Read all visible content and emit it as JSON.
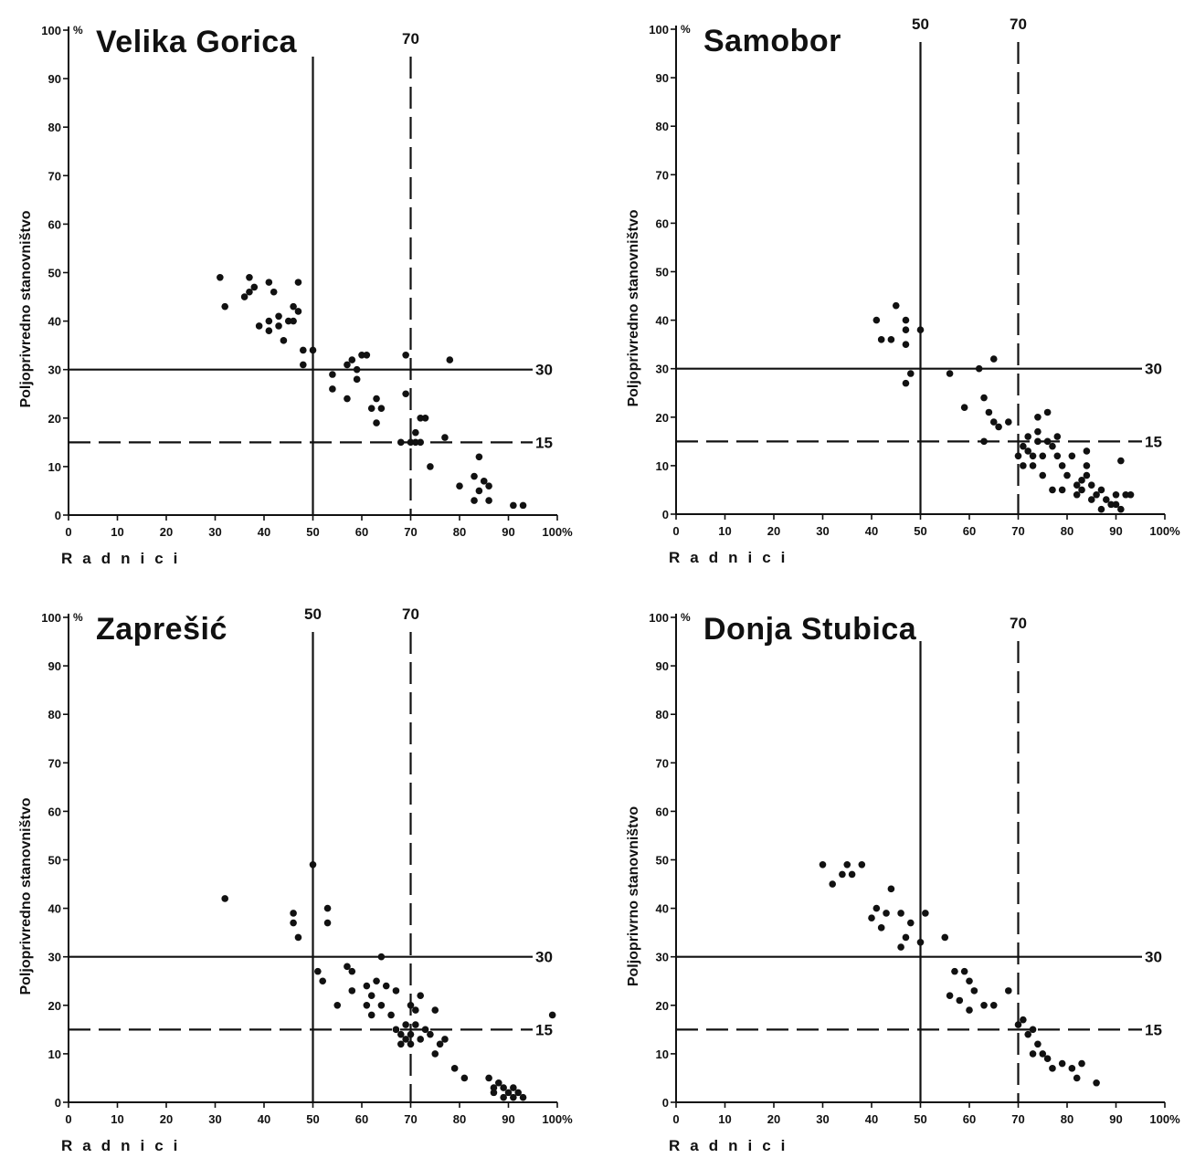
{
  "chart_data": [
    {
      "type": "scatter",
      "title": "Velika Gorica",
      "xlabel": "Radnici",
      "ylabel": "Poljoprivredno stanovništvo",
      "xlim": [
        0,
        100
      ],
      "ylim": [
        0,
        100
      ],
      "x_ticks": [
        "0",
        "10",
        "20",
        "30",
        "40",
        "50",
        "60",
        "70",
        "80",
        "90",
        "100%"
      ],
      "y_ticks": [
        "0",
        "10",
        "20",
        "30",
        "40",
        "50",
        "60",
        "70",
        "80",
        "90",
        "100"
      ],
      "y_unit": "%",
      "ref_lines": {
        "vertical": [
          {
            "value": 50,
            "style": "solid",
            "label": ""
          },
          {
            "value": 70,
            "style": "dashed",
            "label": "70"
          }
        ],
        "horizontal": [
          {
            "value": 30,
            "style": "solid",
            "label": "30"
          },
          {
            "value": 15,
            "style": "dashed",
            "label": "15"
          }
        ]
      },
      "points": [
        [
          31,
          49
        ],
        [
          32,
          43
        ],
        [
          36,
          45
        ],
        [
          37,
          46
        ],
        [
          37,
          49
        ],
        [
          38,
          47
        ],
        [
          39,
          39
        ],
        [
          41,
          48
        ],
        [
          41,
          40
        ],
        [
          41,
          38
        ],
        [
          42,
          46
        ],
        [
          43,
          41
        ],
        [
          43,
          39
        ],
        [
          44,
          36
        ],
        [
          45,
          40
        ],
        [
          46,
          40
        ],
        [
          46,
          43
        ],
        [
          47,
          42
        ],
        [
          47,
          48
        ],
        [
          48,
          34
        ],
        [
          48,
          31
        ],
        [
          50,
          34
        ],
        [
          54,
          29
        ],
        [
          54,
          26
        ],
        [
          57,
          31
        ],
        [
          57,
          24
        ],
        [
          58,
          32
        ],
        [
          59,
          30
        ],
        [
          59,
          28
        ],
        [
          60,
          33
        ],
        [
          61,
          33
        ],
        [
          62,
          22
        ],
        [
          63,
          24
        ],
        [
          63,
          19
        ],
        [
          64,
          22
        ],
        [
          68,
          15
        ],
        [
          69,
          25
        ],
        [
          69,
          33
        ],
        [
          70,
          15
        ],
        [
          71,
          17
        ],
        [
          71,
          15
        ],
        [
          72,
          15
        ],
        [
          72,
          20
        ],
        [
          73,
          20
        ],
        [
          74,
          10
        ],
        [
          77,
          16
        ],
        [
          78,
          32
        ],
        [
          80,
          6
        ],
        [
          83,
          8
        ],
        [
          83,
          3
        ],
        [
          84,
          5
        ],
        [
          84,
          12
        ],
        [
          85,
          7
        ],
        [
          86,
          6
        ],
        [
          86,
          3
        ],
        [
          91,
          2
        ],
        [
          93,
          2
        ]
      ]
    },
    {
      "type": "scatter",
      "title": "Samobor",
      "xlabel": "Radnici",
      "ylabel": "Poljoprivredno stanovništvo",
      "xlim": [
        0,
        100
      ],
      "ylim": [
        0,
        100
      ],
      "x_ticks": [
        "0",
        "10",
        "20",
        "30",
        "40",
        "50",
        "60",
        "70",
        "80",
        "90",
        "100%"
      ],
      "y_ticks": [
        "0",
        "10",
        "20",
        "30",
        "40",
        "50",
        "60",
        "70",
        "80",
        "90",
        "100"
      ],
      "y_unit": "%",
      "ref_lines": {
        "vertical": [
          {
            "value": 50,
            "style": "solid",
            "label": "50"
          },
          {
            "value": 70,
            "style": "dashed",
            "label": "70"
          }
        ],
        "horizontal": [
          {
            "value": 30,
            "style": "solid",
            "label": "30"
          },
          {
            "value": 15,
            "style": "dashed",
            "label": "15"
          }
        ]
      },
      "points": [
        [
          41,
          40
        ],
        [
          42,
          36
        ],
        [
          44,
          36
        ],
        [
          45,
          43
        ],
        [
          47,
          40
        ],
        [
          47,
          38
        ],
        [
          47,
          35
        ],
        [
          47,
          27
        ],
        [
          48,
          29
        ],
        [
          50,
          38
        ],
        [
          56,
          29
        ],
        [
          59,
          22
        ],
        [
          62,
          30
        ],
        [
          63,
          24
        ],
        [
          63,
          15
        ],
        [
          64,
          21
        ],
        [
          65,
          19
        ],
        [
          65,
          32
        ],
        [
          66,
          18
        ],
        [
          68,
          19
        ],
        [
          70,
          12
        ],
        [
          71,
          14
        ],
        [
          71,
          10
        ],
        [
          72,
          13
        ],
        [
          72,
          16
        ],
        [
          73,
          12
        ],
        [
          73,
          10
        ],
        [
          74,
          15
        ],
        [
          74,
          17
        ],
        [
          74,
          20
        ],
        [
          75,
          12
        ],
        [
          75,
          8
        ],
        [
          76,
          15
        ],
        [
          76,
          21
        ],
        [
          77,
          14
        ],
        [
          77,
          5
        ],
        [
          78,
          16
        ],
        [
          78,
          12
        ],
        [
          79,
          5
        ],
        [
          79,
          10
        ],
        [
          80,
          8
        ],
        [
          81,
          12
        ],
        [
          82,
          6
        ],
        [
          82,
          4
        ],
        [
          83,
          7
        ],
        [
          83,
          5
        ],
        [
          84,
          10
        ],
        [
          84,
          13
        ],
        [
          84,
          8
        ],
        [
          85,
          6
        ],
        [
          85,
          3
        ],
        [
          86,
          4
        ],
        [
          87,
          5
        ],
        [
          87,
          1
        ],
        [
          88,
          3
        ],
        [
          89,
          2
        ],
        [
          90,
          4
        ],
        [
          90,
          2
        ],
        [
          91,
          11
        ],
        [
          91,
          1
        ],
        [
          92,
          4
        ],
        [
          93,
          4
        ]
      ]
    },
    {
      "type": "scatter",
      "title": "Zaprešić",
      "xlabel": "Radnici",
      "ylabel": "Poljoprivredno stanovništvo",
      "xlim": [
        0,
        100
      ],
      "ylim": [
        0,
        100
      ],
      "x_ticks": [
        "0",
        "10",
        "20",
        "30",
        "40",
        "50",
        "60",
        "70",
        "80",
        "90",
        "100%"
      ],
      "y_ticks": [
        "0",
        "10",
        "20",
        "30",
        "40",
        "50",
        "60",
        "70",
        "80",
        "90",
        "100"
      ],
      "y_unit": "%",
      "ref_lines": {
        "vertical": [
          {
            "value": 50,
            "style": "solid",
            "label": "50"
          },
          {
            "value": 70,
            "style": "dashed",
            "label": "70"
          }
        ],
        "horizontal": [
          {
            "value": 30,
            "style": "solid",
            "label": "30"
          },
          {
            "value": 15,
            "style": "dashed",
            "label": "15"
          }
        ]
      },
      "points": [
        [
          32,
          42
        ],
        [
          46,
          39
        ],
        [
          46,
          37
        ],
        [
          47,
          34
        ],
        [
          50,
          49
        ],
        [
          51,
          27
        ],
        [
          52,
          25
        ],
        [
          53,
          40
        ],
        [
          53,
          37
        ],
        [
          55,
          20
        ],
        [
          57,
          28
        ],
        [
          58,
          27
        ],
        [
          58,
          23
        ],
        [
          61,
          24
        ],
        [
          61,
          20
        ],
        [
          62,
          18
        ],
        [
          62,
          22
        ],
        [
          63,
          25
        ],
        [
          64,
          30
        ],
        [
          64,
          20
        ],
        [
          65,
          24
        ],
        [
          66,
          18
        ],
        [
          67,
          15
        ],
        [
          67,
          23
        ],
        [
          68,
          14
        ],
        [
          68,
          12
        ],
        [
          69,
          13
        ],
        [
          69,
          16
        ],
        [
          70,
          20
        ],
        [
          70,
          14
        ],
        [
          70,
          12
        ],
        [
          71,
          19
        ],
        [
          71,
          16
        ],
        [
          72,
          22
        ],
        [
          72,
          13
        ],
        [
          73,
          15
        ],
        [
          74,
          14
        ],
        [
          75,
          19
        ],
        [
          75,
          10
        ],
        [
          76,
          12
        ],
        [
          77,
          13
        ],
        [
          79,
          7
        ],
        [
          81,
          5
        ],
        [
          86,
          5
        ],
        [
          87,
          3
        ],
        [
          87,
          2
        ],
        [
          88,
          4
        ],
        [
          89,
          3
        ],
        [
          89,
          1
        ],
        [
          90,
          2
        ],
        [
          91,
          3
        ],
        [
          91,
          1
        ],
        [
          92,
          2
        ],
        [
          93,
          1
        ],
        [
          99,
          18
        ]
      ]
    },
    {
      "type": "scatter",
      "title": "Donja Stubica",
      "xlabel": "Radnici",
      "ylabel": "Poljoprivrno stanovništvo",
      "xlim": [
        0,
        100
      ],
      "ylim": [
        0,
        100
      ],
      "x_ticks": [
        "0",
        "10",
        "20",
        "30",
        "40",
        "50",
        "60",
        "70",
        "80",
        "90",
        "100%"
      ],
      "y_ticks": [
        "0",
        "10",
        "20",
        "30",
        "40",
        "50",
        "60",
        "70",
        "80",
        "90",
        "100"
      ],
      "y_unit": "%",
      "ref_lines": {
        "vertical": [
          {
            "value": 50,
            "style": "solid",
            "label": ""
          },
          {
            "value": 70,
            "style": "dashed",
            "label": "70"
          }
        ],
        "horizontal": [
          {
            "value": 30,
            "style": "solid",
            "label": "30"
          },
          {
            "value": 15,
            "style": "dashed",
            "label": "15"
          }
        ]
      },
      "points": [
        [
          30,
          49
        ],
        [
          32,
          45
        ],
        [
          34,
          47
        ],
        [
          35,
          49
        ],
        [
          36,
          47
        ],
        [
          38,
          49
        ],
        [
          40,
          38
        ],
        [
          41,
          40
        ],
        [
          42,
          36
        ],
        [
          43,
          39
        ],
        [
          44,
          44
        ],
        [
          46,
          39
        ],
        [
          46,
          32
        ],
        [
          47,
          34
        ],
        [
          48,
          37
        ],
        [
          50,
          33
        ],
        [
          51,
          39
        ],
        [
          55,
          34
        ],
        [
          56,
          22
        ],
        [
          57,
          27
        ],
        [
          58,
          21
        ],
        [
          59,
          27
        ],
        [
          60,
          25
        ],
        [
          60,
          19
        ],
        [
          61,
          23
        ],
        [
          63,
          20
        ],
        [
          65,
          20
        ],
        [
          68,
          23
        ],
        [
          70,
          16
        ],
        [
          71,
          17
        ],
        [
          72,
          14
        ],
        [
          73,
          15
        ],
        [
          73,
          10
        ],
        [
          74,
          12
        ],
        [
          75,
          10
        ],
        [
          76,
          9
        ],
        [
          77,
          7
        ],
        [
          79,
          8
        ],
        [
          81,
          7
        ],
        [
          82,
          5
        ],
        [
          83,
          8
        ],
        [
          86,
          4
        ]
      ]
    }
  ]
}
